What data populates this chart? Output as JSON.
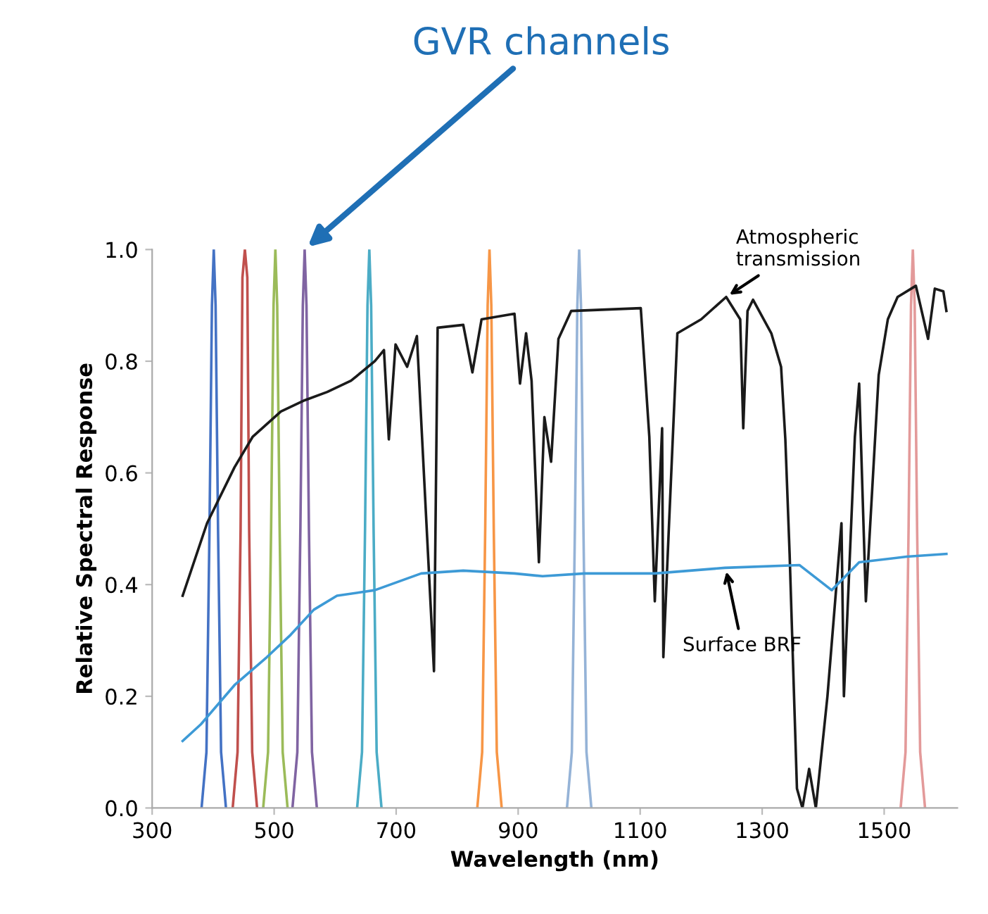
{
  "chart_data": {
    "type": "line",
    "xlabel": "Wavelength (nm)",
    "ylabel": "Relative Spectral Response",
    "xlim": [
      300,
      1620
    ],
    "xticks": [
      300,
      500,
      700,
      900,
      1100,
      1300,
      1500
    ],
    "ylim": [
      0,
      1.0
    ],
    "yticks": [
      {
        "value": 0,
        "label": "0.0"
      },
      0.2,
      0.4,
      0.6,
      0.8,
      {
        "value": 1,
        "label": "1.0"
      }
    ],
    "grid": false,
    "marker": "none",
    "line_style": "solid",
    "series": [
      {
        "color": "#4472c4",
        "x": [
          381,
          389,
          394,
          398,
          401,
          404,
          408,
          413,
          421
        ],
        "values": [
          0,
          0.1,
          0.5,
          0.9,
          1.0,
          0.9,
          0.5,
          0.1,
          0
        ]
      },
      {
        "color": "#c0504d",
        "x": [
          432,
          440,
          445,
          448,
          452,
          456,
          459,
          464,
          472
        ],
        "values": [
          0,
          0.1,
          0.5,
          0.95,
          1.0,
          0.95,
          0.5,
          0.1,
          0
        ]
      },
      {
        "color": "#9bbb59",
        "x": [
          482,
          490,
          495,
          499,
          502,
          505,
          509,
          514,
          522
        ],
        "values": [
          0,
          0.1,
          0.5,
          0.9,
          1.0,
          0.9,
          0.5,
          0.1,
          0
        ]
      },
      {
        "color": "#8064a2",
        "x": [
          530,
          538,
          543,
          547,
          550,
          553,
          557,
          562,
          570
        ],
        "values": [
          0,
          0.1,
          0.5,
          0.9,
          1.0,
          0.9,
          0.5,
          0.1,
          0
        ]
      },
      {
        "color": "#4bacc6",
        "x": [
          636,
          644,
          649,
          653,
          656,
          659,
          663,
          668,
          676
        ],
        "values": [
          0,
          0.1,
          0.5,
          0.9,
          1.0,
          0.9,
          0.5,
          0.1,
          0
        ]
      },
      {
        "color": "#f79646",
        "x": [
          833,
          841,
          846,
          850,
          853,
          856,
          860,
          865,
          873
        ],
        "values": [
          0,
          0.1,
          0.5,
          0.9,
          1.0,
          0.9,
          0.5,
          0.1,
          0
        ]
      },
      {
        "color": "#95b3d7",
        "x": [
          980,
          988,
          993,
          997,
          1000,
          1003,
          1007,
          1012,
          1020
        ],
        "values": [
          0,
          0.1,
          0.5,
          0.9,
          1.0,
          0.9,
          0.5,
          0.1,
          0
        ]
      },
      {
        "color": "#e39a9a",
        "x": [
          1527,
          1535,
          1540,
          1544,
          1547,
          1550,
          1554,
          1559,
          1567
        ],
        "values": [
          0,
          0.1,
          0.5,
          0.9,
          1.0,
          0.9,
          0.5,
          0.1,
          0
        ]
      },
      {
        "color": "#1a1a1a",
        "x": [
          350,
          390,
          435,
          465,
          511,
          550,
          587,
          626,
          665,
          680,
          688,
          699,
          718,
          734,
          762,
          768,
          810,
          825,
          840,
          894,
          903,
          913,
          922,
          934,
          943,
          954,
          966,
          987,
          1101,
          1115,
          1124,
          1136,
          1138,
          1147,
          1161,
          1200,
          1241,
          1264,
          1269,
          1276,
          1285,
          1315,
          1331,
          1338,
          1345,
          1357,
          1366,
          1377,
          1388,
          1407,
          1430,
          1434,
          1452,
          1459,
          1470,
          1491,
          1506,
          1522,
          1552,
          1572,
          1583,
          1597,
          1602
        ],
        "values": [
          0.38,
          0.51,
          0.61,
          0.665,
          0.71,
          0.73,
          0.745,
          0.765,
          0.8,
          0.82,
          0.66,
          0.83,
          0.79,
          0.845,
          0.245,
          0.86,
          0.865,
          0.78,
          0.875,
          0.885,
          0.76,
          0.85,
          0.765,
          0.44,
          0.7,
          0.62,
          0.84,
          0.89,
          0.895,
          0.665,
          0.37,
          0.68,
          0.27,
          0.5,
          0.85,
          0.875,
          0.915,
          0.875,
          0.68,
          0.89,
          0.91,
          0.85,
          0.79,
          0.66,
          0.455,
          0.035,
          0.0,
          0.07,
          0.0,
          0.2,
          0.51,
          0.2,
          0.665,
          0.76,
          0.37,
          0.775,
          0.875,
          0.915,
          0.935,
          0.84,
          0.93,
          0.925,
          0.89
        ]
      },
      {
        "color": "#3d9ad6",
        "x": [
          350,
          380,
          435,
          488,
          527,
          565,
          603,
          665,
          741,
          810,
          894,
          940,
          1009,
          1124,
          1239,
          1361,
          1414,
          1459,
          1537,
          1602
        ],
        "values": [
          0.12,
          0.15,
          0.22,
          0.27,
          0.31,
          0.355,
          0.38,
          0.39,
          0.42,
          0.425,
          0.42,
          0.415,
          0.42,
          0.42,
          0.43,
          0.435,
          0.39,
          0.44,
          0.45,
          0.455
        ]
      }
    ],
    "annotations": [
      {
        "text": "GVR channels",
        "x": 550,
        "y": 1.0
      },
      {
        "text": "Atmospheric\ntransmission",
        "x": 1241,
        "y": 0.915
      },
      {
        "text": "Surface BRF",
        "x": 1240,
        "y": 0.43
      }
    ]
  }
}
